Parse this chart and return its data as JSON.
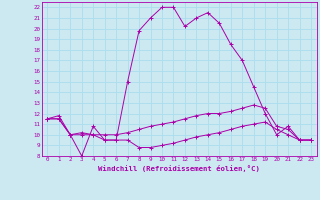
{
  "xlabel": "Windchill (Refroidissement éolien,°C)",
  "bg_color": "#cce8f0",
  "line_color": "#aa00aa",
  "grid_color": "#aaddee",
  "xlim": [
    -0.5,
    23.5
  ],
  "ylim": [
    8,
    22.5
  ],
  "xticks": [
    0,
    1,
    2,
    3,
    4,
    5,
    6,
    7,
    8,
    9,
    10,
    11,
    12,
    13,
    14,
    15,
    16,
    17,
    18,
    19,
    20,
    21,
    22,
    23
  ],
  "yticks": [
    8,
    9,
    10,
    11,
    12,
    13,
    14,
    15,
    16,
    17,
    18,
    19,
    20,
    21,
    22
  ],
  "series": [
    [
      11.5,
      11.8,
      10.0,
      8.0,
      10.8,
      9.5,
      9.5,
      15.0,
      19.8,
      21.0,
      22.0,
      22.0,
      20.2,
      21.0,
      21.5,
      20.5,
      18.5,
      17.0,
      14.5,
      12.0,
      10.0,
      10.8,
      9.5,
      9.5
    ],
    [
      11.5,
      11.5,
      10.0,
      10.2,
      10.0,
      10.0,
      10.0,
      10.2,
      10.5,
      10.8,
      11.0,
      11.2,
      11.5,
      11.8,
      12.0,
      12.0,
      12.2,
      12.5,
      12.8,
      12.5,
      10.8,
      10.5,
      9.5,
      9.5
    ],
    [
      11.5,
      11.5,
      10.0,
      10.0,
      10.0,
      9.5,
      9.5,
      9.5,
      8.8,
      8.8,
      9.0,
      9.2,
      9.5,
      9.8,
      10.0,
      10.2,
      10.5,
      10.8,
      11.0,
      11.2,
      10.5,
      10.0,
      9.5,
      9.5
    ]
  ],
  "tick_fontsize": 4.2,
  "xlabel_fontsize": 5.2
}
